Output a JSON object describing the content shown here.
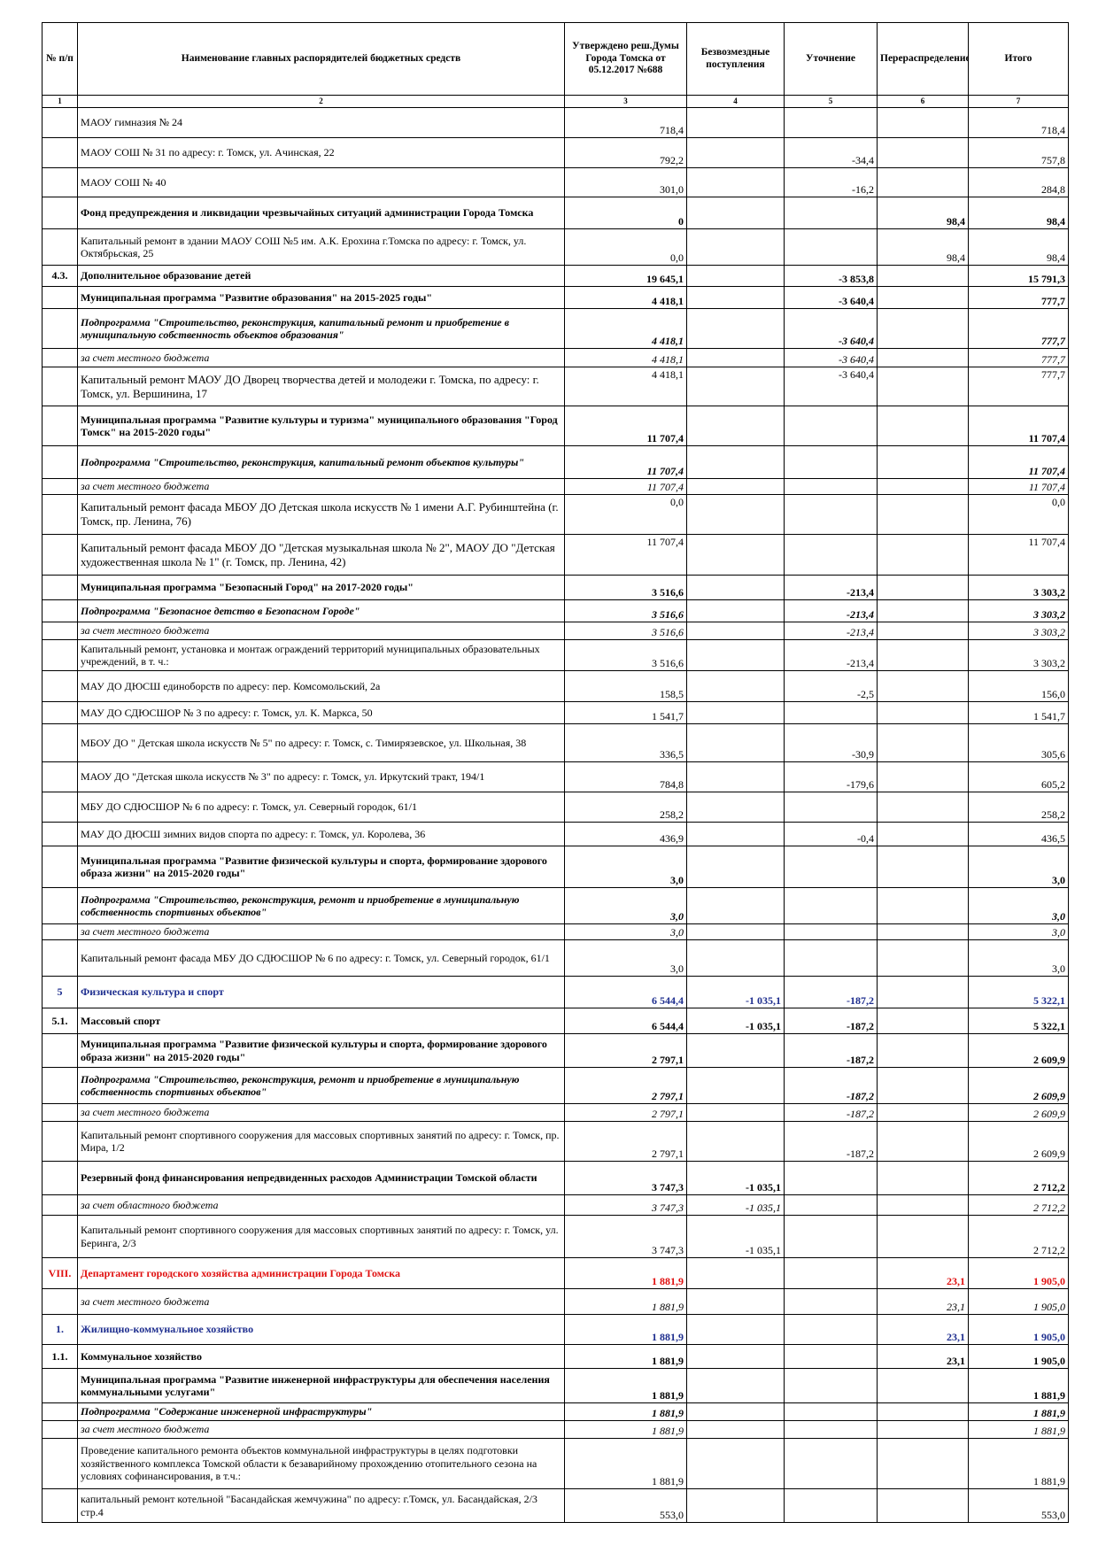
{
  "table": {
    "header": [
      "№ п/п",
      "Наименование главных распорядителей бюджетных средств",
      "Утверждено реш.Думы Города Томска от 05.12.2017 №688",
      "Безвозмездные поступления",
      "Уточнение",
      "Перераспределение",
      "Итого"
    ],
    "column_numbers": [
      "1",
      "2",
      "3",
      "4",
      "5",
      "6",
      "7"
    ],
    "rows": [
      [
        null,
        "МАОУ гимназия № 24",
        "718,4",
        null,
        null,
        null,
        "718,4"
      ],
      [
        null,
        "МАОУ СОШ № 31 по адресу: г. Томск, ул. Ачинская, 22",
        "792,2",
        null,
        "-34,4",
        null,
        "757,8"
      ],
      [
        null,
        "МАОУ СОШ № 40",
        "301,0",
        null,
        "-16,2",
        null,
        "284,8"
      ],
      [
        null,
        "Фонд предупреждения и ликвидации чрезвычайных ситуаций администрации Города Томска",
        "0",
        null,
        null,
        "98,4",
        "98,4"
      ],
      [
        null,
        "Капитальный ремонт в здании МАОУ СОШ №5 им. А.К. Ерохина г.Томска по адресу: г. Томск, ул. Октябрьская, 25",
        "0,0",
        null,
        null,
        "98,4",
        "98,4"
      ],
      [
        "4.3.",
        "Дополнительное образование детей",
        "19 645,1",
        null,
        "-3 853,8",
        null,
        "15 791,3"
      ],
      [
        null,
        "Муниципальная программа \"Развитие образования\" на 2015-2025 годы\"",
        "4 418,1",
        null,
        "-3 640,4",
        null,
        "777,7"
      ],
      [
        null,
        "Подпрограмма \"Строительство, реконструкция, капитальный ремонт и приобретение в муниципальную собственность объектов образования\"",
        "4 418,1",
        null,
        "-3 640,4",
        null,
        "777,7"
      ],
      [
        null,
        "за счет местного бюджета",
        "4 418,1",
        null,
        "-3 640,4",
        null,
        "777,7"
      ],
      [
        null,
        "Капитальный ремонт МАОУ ДО Дворец творчества детей и молодежи г. Томска, по адресу: г. Томск, ул. Вершинина, 17",
        "4 418,1",
        null,
        "-3 640,4",
        null,
        "777,7"
      ],
      [
        null,
        "Муниципальная программа \"Развитие культуры и туризма\" муниципального образования \"Город Томск\" на 2015-2020 годы\"",
        "11 707,4",
        null,
        null,
        null,
        "11 707,4"
      ],
      [
        null,
        "Подпрограмма \"Строительство, реконструкция, капитальный ремонт объектов культуры\"",
        "11 707,4",
        null,
        null,
        null,
        "11 707,4"
      ],
      [
        null,
        "за счет  местного бюджета",
        "11 707,4",
        null,
        null,
        null,
        "11 707,4"
      ],
      [
        null,
        "Капитальный ремонт фасада МБОУ ДО Детская школа искусств № 1 имени А.Г. Рубинштейна (г. Томск, пр. Ленина, 76)",
        "0,0",
        null,
        null,
        null,
        "0,0"
      ],
      [
        null,
        "Капитальный ремонт фасада МБОУ ДО \"Детская музыкальная школа № 2\", МАОУ ДО \"Детская художественная школа № 1\" (г. Томск, пр. Ленина, 42)",
        "11 707,4",
        null,
        null,
        null,
        "11 707,4"
      ],
      [
        null,
        "Муниципальная программа \"Безопасный Город\" на 2017-2020 годы\"",
        "3 516,6",
        null,
        "-213,4",
        null,
        "3 303,2"
      ],
      [
        null,
        "Подпрограмма  \"Безопасное детство в Безопасном Городе\"",
        "3 516,6",
        null,
        "-213,4",
        null,
        "3 303,2"
      ],
      [
        null,
        "за счет  местного бюджета",
        "3 516,6",
        null,
        "-213,4",
        null,
        "3 303,2"
      ],
      [
        null,
        "Капитальный ремонт, установка и монтаж ограждений территорий муниципальных образовательных учреждений, в т. ч.:",
        "3 516,6",
        null,
        "-213,4",
        null,
        "3 303,2"
      ],
      [
        null,
        "МАУ ДО ДЮСШ единоборств по адресу: пер. Комсомольский, 2а",
        "158,5",
        null,
        "-2,5",
        null,
        "156,0"
      ],
      [
        null,
        "МАУ ДО СДЮСШОР № 3 по адресу: г. Томск, ул. К. Маркса, 50",
        "1 541,7",
        null,
        null,
        null,
        "1 541,7"
      ],
      [
        null,
        "МБОУ ДО \" Детская школа искусств № 5\" по адресу: г. Томск, с. Тимирязевское, ул. Школьная, 38",
        "336,5",
        null,
        "-30,9",
        null,
        "305,6"
      ],
      [
        null,
        "МАОУ ДО \"Детская школа искусств № 3\" по адресу: г. Томск, ул. Иркутский тракт, 194/1",
        "784,8",
        null,
        "-179,6",
        null,
        "605,2"
      ],
      [
        null,
        "МБУ ДО СДЮСШОР № 6 по адресу: г. Томск, ул. Северный городок, 61/1",
        "258,2",
        null,
        null,
        null,
        "258,2"
      ],
      [
        null,
        "МАУ ДО ДЮСШ зимних видов спорта по адресу: г. Томск, ул. Королева, 36",
        "436,9",
        null,
        "-0,4",
        null,
        "436,5"
      ],
      [
        null,
        "Муниципальная программа \"Развитие физической культуры и спорта, формирование здорового образа жизни\" на 2015-2020 годы\"",
        "3,0",
        null,
        null,
        null,
        "3,0"
      ],
      [
        null,
        "Подпрограмма \"Строительство, реконструкция, ремонт и приобретение в муниципальную собственность спортивных объектов\"",
        "3,0",
        null,
        null,
        null,
        "3,0"
      ],
      [
        null,
        "за счет  местного бюджета",
        "3,0",
        null,
        null,
        null,
        "3,0"
      ],
      [
        null,
        "Капитальный ремонт фасада МБУ ДО СДЮСШОР № 6 по адресу: г. Томск, ул. Северный городок, 61/1",
        "3,0",
        null,
        null,
        null,
        "3,0"
      ],
      [
        "5",
        "Физическая культура и спорт",
        "6 544,4",
        "-1 035,1",
        "-187,2",
        null,
        "5 322,1"
      ],
      [
        "5.1.",
        "Массовый спорт",
        "6 544,4",
        "-1 035,1",
        "-187,2",
        null,
        "5 322,1"
      ],
      [
        null,
        "Муниципальная программа \"Развитие физической культуры и спорта, формирование здорового образа жизни\" на 2015-2020 годы\"",
        "2 797,1",
        null,
        "-187,2",
        null,
        "2 609,9"
      ],
      [
        null,
        "Подпрограмма \"Строительство, реконструкция, ремонт и приобретение в муниципальную собственность спортивных объектов\"",
        "2 797,1",
        null,
        "-187,2",
        null,
        "2 609,9"
      ],
      [
        null,
        "за счет местного бюджета",
        "2 797,1",
        null,
        "-187,2",
        null,
        "2 609,9"
      ],
      [
        null,
        "Капитальный ремонт спортивного сооружения для массовых спортивных занятий по адресу: г. Томск, пр. Мира, 1/2",
        "2 797,1",
        null,
        "-187,2",
        null,
        "2 609,9"
      ],
      [
        null,
        "Резервный фонд финансирования непредвиденных расходов Администрации Томской области",
        "3 747,3",
        "-1 035,1",
        null,
        null,
        "2 712,2"
      ],
      [
        null,
        "за счет областного бюджета",
        "3 747,3",
        "-1 035,1",
        null,
        null,
        "2 712,2"
      ],
      [
        null,
        "Капитальный ремонт спортивного сооружения для массовых спортивных занятий по адресу: г. Томск, ул. Беринга, 2/3",
        "3 747,3",
        "-1 035,1",
        null,
        null,
        "2 712,2"
      ],
      [
        "VIII.",
        "Департамент городского хозяйства администрации Города Томска",
        "1 881,9",
        null,
        null,
        "23,1",
        "1 905,0"
      ],
      [
        null,
        "за счет местного бюджета",
        "1 881,9",
        null,
        null,
        "23,1",
        "1 905,0"
      ],
      [
        "1.",
        "Жилищно-коммунальное хозяйство",
        "1 881,9",
        null,
        null,
        "23,1",
        "1 905,0"
      ],
      [
        "1.1.",
        "Коммунальное хозяйство",
        "1 881,9",
        null,
        null,
        "23,1",
        "1 905,0"
      ],
      [
        null,
        "Муниципальная программа \"Развитие инженерной инфраструктуры для обеспечения населения коммунальными услугами\"",
        "1 881,9",
        null,
        null,
        null,
        "1 881,9"
      ],
      [
        null,
        "Подпрограмма \"Содержание инженерной инфраструктуры\"",
        "1 881,9",
        null,
        null,
        null,
        "1 881,9"
      ],
      [
        null,
        "за счет  местного бюджета",
        "1 881,9",
        null,
        null,
        null,
        "1 881,9"
      ],
      [
        null,
        "Проведение капитального ремонта объектов коммунальной инфраструктуры в целях подготовки хозяйственного комплекса Томской области к безаварийному прохождению отопительного сезона на условиях софинансирования, в т.ч.:",
        "1 881,9",
        null,
        null,
        null,
        "1 881,9"
      ],
      [
        null,
        "   капитальный ремонт котельной \"Басандайская жемчужина\" по адресу: г.Томск, ул. Басандайская, 2/3 стр.4",
        "553,0",
        null,
        null,
        null,
        "553,0"
      ]
    ]
  }
}
